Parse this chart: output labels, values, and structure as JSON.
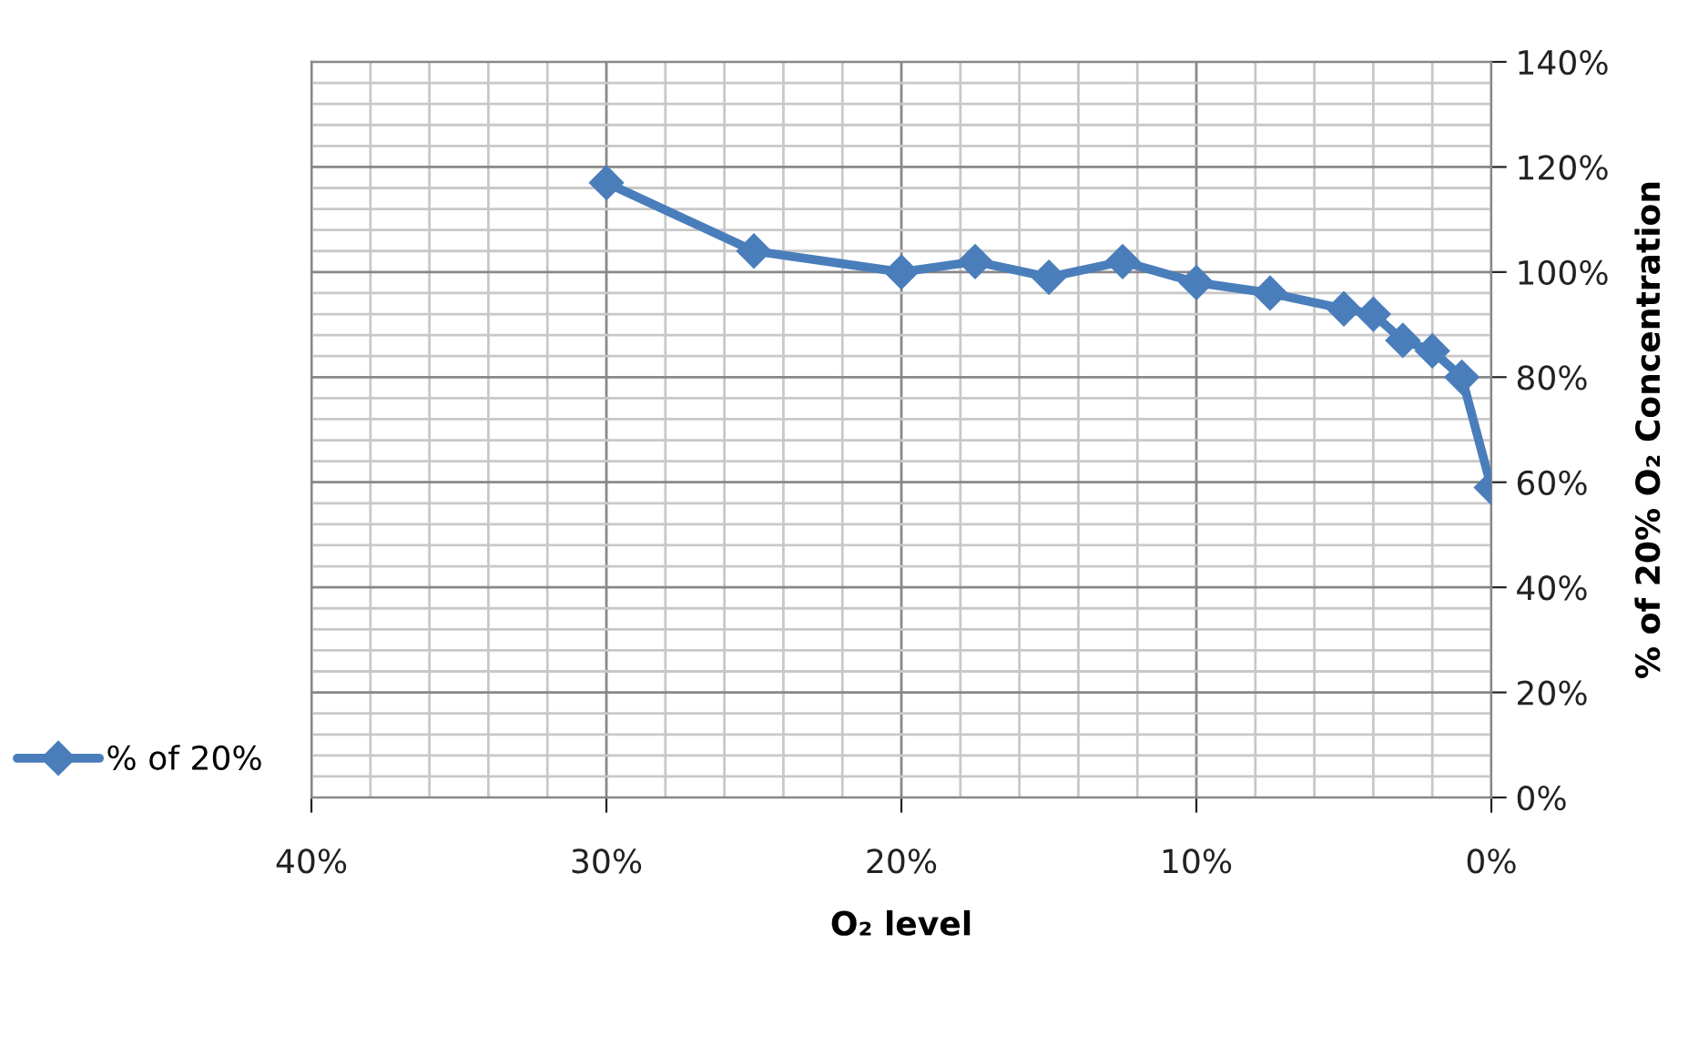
{
  "chart_data": {
    "type": "line",
    "xlabel": "O₂ level",
    "ylabel": "% of 20% O₂ Concentration",
    "x": [
      30,
      25,
      20,
      17.5,
      15,
      12.5,
      10,
      7.5,
      5,
      4,
      3,
      2,
      1,
      0
    ],
    "series": [
      {
        "name": "% of 20%",
        "color": "#4a7ebb",
        "values": [
          117,
          104,
          100,
          102,
          99,
          102,
          98,
          96,
          93,
          92,
          87,
          85,
          80,
          59
        ]
      }
    ],
    "xlim": [
      40,
      0
    ],
    "xticks": [
      {
        "value": 40,
        "label": "40%"
      },
      {
        "value": 30,
        "label": "30%"
      },
      {
        "value": 20,
        "label": "20%"
      },
      {
        "value": 10,
        "label": "10%"
      },
      {
        "value": 0,
        "label": "0%"
      }
    ],
    "ylim": [
      0,
      140
    ],
    "yticks": [
      {
        "value": 0,
        "label": "0%"
      },
      {
        "value": 20,
        "label": "20%"
      },
      {
        "value": 40,
        "label": "40%"
      },
      {
        "value": 60,
        "label": "60%"
      },
      {
        "value": 80,
        "label": "80%"
      },
      {
        "value": 100,
        "label": "100%"
      },
      {
        "value": 120,
        "label": "120%"
      },
      {
        "value": 140,
        "label": "140%"
      }
    ],
    "grid": true,
    "legend": "left",
    "marker": "diamond",
    "line_style": "solid"
  }
}
